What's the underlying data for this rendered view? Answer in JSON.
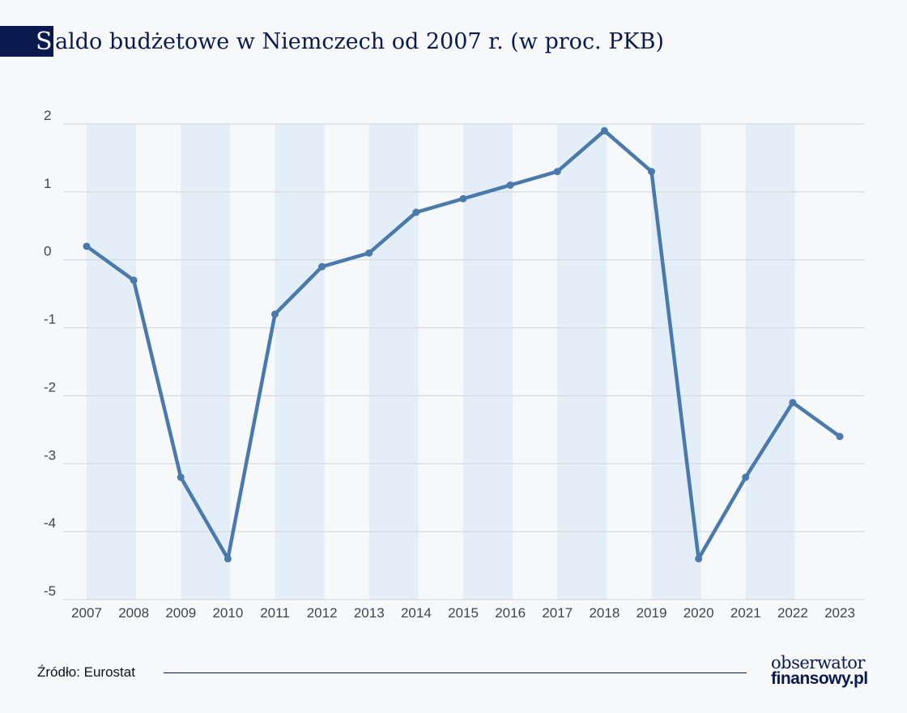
{
  "title": {
    "initial": "S",
    "rest": "aldo budżetowe w Niemczech od 2007 r. (w proc. PKB)"
  },
  "chart_data": {
    "type": "line",
    "title": "Saldo budżetowe w Niemczech od 2007 r. (w proc. PKB)",
    "xlabel": "",
    "ylabel": "",
    "x": [
      "2007",
      "2008",
      "2009",
      "2010",
      "2011",
      "2012",
      "2013",
      "2014",
      "2015",
      "2016",
      "2017",
      "2018",
      "2019",
      "2020",
      "2021",
      "2022",
      "2023"
    ],
    "series": [
      {
        "values": [
          0.2,
          -0.3,
          -3.2,
          -4.4,
          -0.8,
          -0.1,
          0.1,
          0.7,
          0.9,
          1.1,
          1.3,
          1.9,
          1.3,
          -4.4,
          -3.2,
          -2.1,
          -2.6
        ]
      }
    ],
    "ylim": [
      -5,
      2
    ],
    "yticks": [
      "-5",
      "-4",
      "-3",
      "-2",
      "-1",
      "0",
      "1",
      "2"
    ],
    "grid": true,
    "alternating_bands": true,
    "colors": {
      "line": "#4a7aab",
      "band": "#e4eef8",
      "grid": "#cfd4da"
    }
  },
  "footer": {
    "source": "Źródło: Eurostat",
    "logo_top": "obserwator",
    "logo_bottom": "finansowy.pl"
  }
}
